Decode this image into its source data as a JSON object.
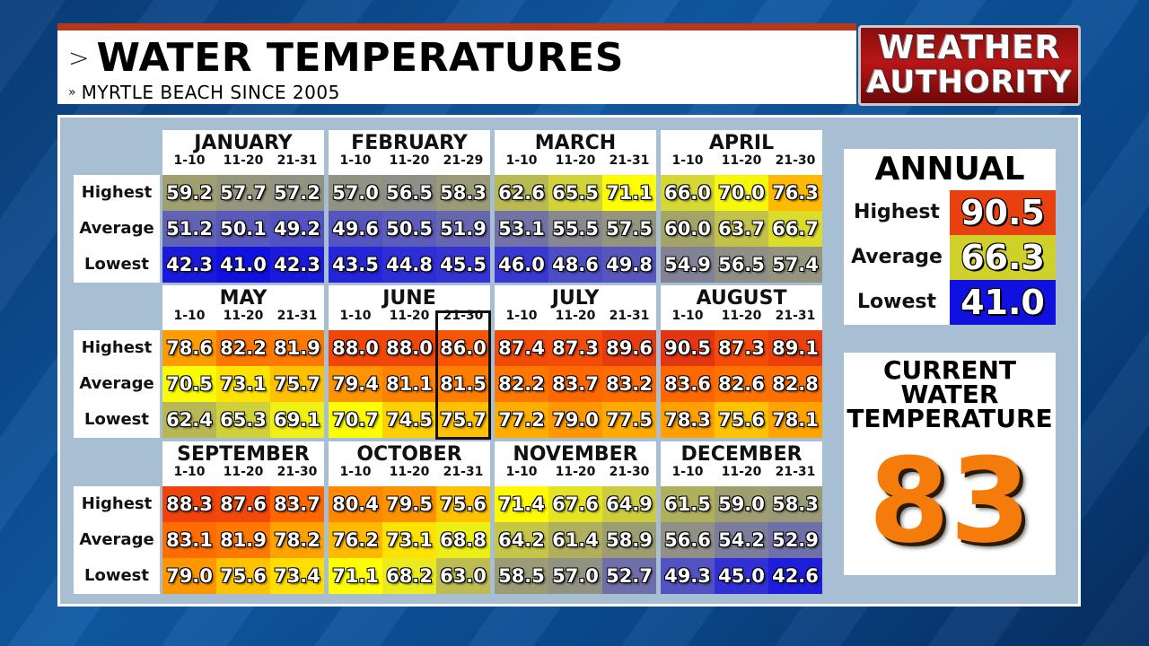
{
  "header": {
    "title": "WATER TEMPERATURES",
    "subtitle": "MYRTLE BEACH SINCE 2005",
    "chevron": ">",
    "sub_chevron": "»"
  },
  "logo": {
    "line1": "WEATHER",
    "line2": "AUTHORITY"
  },
  "row_labels": [
    "Highest",
    "Average",
    "Lowest"
  ],
  "months": [
    {
      "name": "JANUARY",
      "ranges": [
        "1-10",
        "11-20",
        "21-31"
      ],
      "values": [
        [
          "59.2",
          "57.7",
          "57.2"
        ],
        [
          "51.2",
          "50.1",
          "49.2"
        ],
        [
          "42.3",
          "41.0",
          "42.3"
        ]
      ]
    },
    {
      "name": "FEBRUARY",
      "ranges": [
        "1-10",
        "11-20",
        "21-29"
      ],
      "values": [
        [
          "57.0",
          "56.5",
          "58.3"
        ],
        [
          "49.6",
          "50.5",
          "51.9"
        ],
        [
          "43.5",
          "44.8",
          "45.5"
        ]
      ]
    },
    {
      "name": "MARCH",
      "ranges": [
        "1-10",
        "11-20",
        "21-31"
      ],
      "values": [
        [
          "62.6",
          "65.5",
          "71.1"
        ],
        [
          "53.1",
          "55.5",
          "57.5"
        ],
        [
          "46.0",
          "48.6",
          "49.8"
        ]
      ]
    },
    {
      "name": "APRIL",
      "ranges": [
        "1-10",
        "11-20",
        "21-30"
      ],
      "values": [
        [
          "66.0",
          "70.0",
          "76.3"
        ],
        [
          "60.0",
          "63.7",
          "66.7"
        ],
        [
          "54.9",
          "56.5",
          "57.4"
        ]
      ]
    },
    {
      "name": "MAY",
      "ranges": [
        "1-10",
        "11-20",
        "21-31"
      ],
      "values": [
        [
          "78.6",
          "82.2",
          "81.9"
        ],
        [
          "70.5",
          "73.1",
          "75.7"
        ],
        [
          "62.4",
          "65.3",
          "69.1"
        ]
      ]
    },
    {
      "name": "JUNE",
      "ranges": [
        "1-10",
        "11-20",
        "21-30"
      ],
      "values": [
        [
          "88.0",
          "88.0",
          "86.0"
        ],
        [
          "79.4",
          "81.1",
          "81.5"
        ],
        [
          "70.7",
          "74.5",
          "75.7"
        ]
      ]
    },
    {
      "name": "JULY",
      "ranges": [
        "1-10",
        "11-20",
        "21-31"
      ],
      "values": [
        [
          "87.4",
          "87.3",
          "89.6"
        ],
        [
          "82.2",
          "83.7",
          "83.2"
        ],
        [
          "77.2",
          "79.0",
          "77.5"
        ]
      ]
    },
    {
      "name": "AUGUST",
      "ranges": [
        "1-10",
        "11-20",
        "21-31"
      ],
      "values": [
        [
          "90.5",
          "87.3",
          "89.1"
        ],
        [
          "83.6",
          "82.6",
          "82.8"
        ],
        [
          "78.3",
          "75.6",
          "78.1"
        ]
      ]
    },
    {
      "name": "SEPTEMBER",
      "ranges": [
        "1-10",
        "11-20",
        "21-30"
      ],
      "values": [
        [
          "88.3",
          "87.6",
          "83.7"
        ],
        [
          "83.1",
          "81.9",
          "78.2"
        ],
        [
          "79.0",
          "75.6",
          "73.4"
        ]
      ]
    },
    {
      "name": "OCTOBER",
      "ranges": [
        "1-10",
        "11-20",
        "21-31"
      ],
      "values": [
        [
          "80.4",
          "79.5",
          "75.6"
        ],
        [
          "76.2",
          "73.1",
          "68.8"
        ],
        [
          "71.1",
          "68.2",
          "63.0"
        ]
      ]
    },
    {
      "name": "NOVEMBER",
      "ranges": [
        "1-10",
        "11-20",
        "21-30"
      ],
      "values": [
        [
          "71.4",
          "67.6",
          "64.9"
        ],
        [
          "64.2",
          "61.4",
          "58.9"
        ],
        [
          "58.5",
          "57.0",
          "52.7"
        ]
      ]
    },
    {
      "name": "DECEMBER",
      "ranges": [
        "1-10",
        "11-20",
        "21-31"
      ],
      "values": [
        [
          "61.5",
          "59.0",
          "58.3"
        ],
        [
          "56.6",
          "54.2",
          "52.9"
        ],
        [
          "49.3",
          "45.0",
          "42.6"
        ]
      ]
    }
  ],
  "highlighted": {
    "month_index": 5,
    "column_index": 2
  },
  "annual": {
    "title": "ANNUAL",
    "rows": [
      {
        "label": "Highest",
        "value": "90.5",
        "color": "#e8400e"
      },
      {
        "label": "Average",
        "value": "66.3",
        "color": "#cfd12a"
      },
      {
        "label": "Lowest",
        "value": "41.0",
        "color": "#1010e0"
      }
    ]
  },
  "current": {
    "title_lines": [
      "CURRENT",
      "WATER",
      "TEMPERATURE"
    ],
    "value": "83",
    "color": "#f57c0a"
  }
}
